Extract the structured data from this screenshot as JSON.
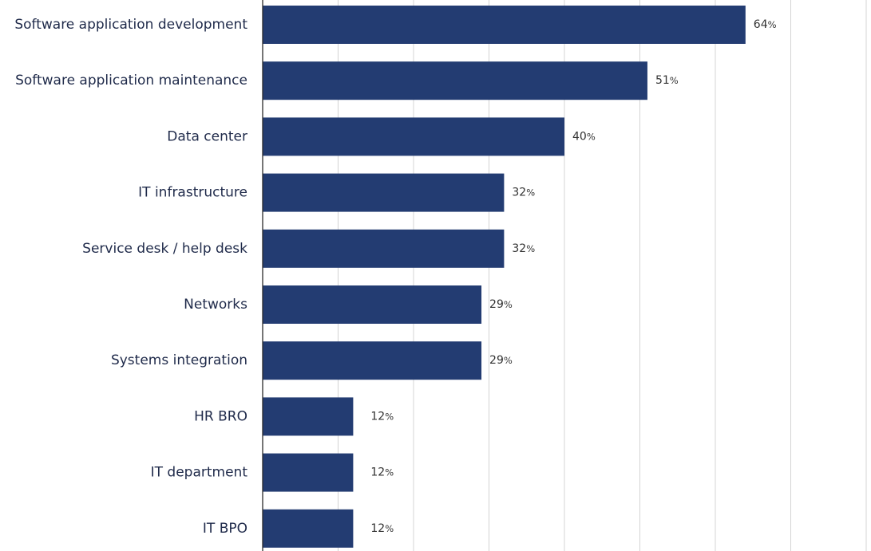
{
  "chart_data": {
    "type": "bar",
    "orientation": "horizontal",
    "categories": [
      "Software application development",
      "Software application maintenance",
      "Data center",
      "IT infrastructure",
      "Service desk / help desk",
      "Networks",
      "Systems integration",
      "HR BRO",
      "IT department",
      "IT BPO"
    ],
    "values": [
      64,
      51,
      40,
      32,
      32,
      29,
      29,
      12,
      12,
      12
    ],
    "value_labels": [
      "64",
      "51",
      "40",
      "32",
      "32",
      "29",
      "29",
      "12",
      "12",
      "12"
    ],
    "value_suffix": "%",
    "xlim": [
      0,
      80
    ],
    "grid": true,
    "bar_color": "#233c72"
  }
}
